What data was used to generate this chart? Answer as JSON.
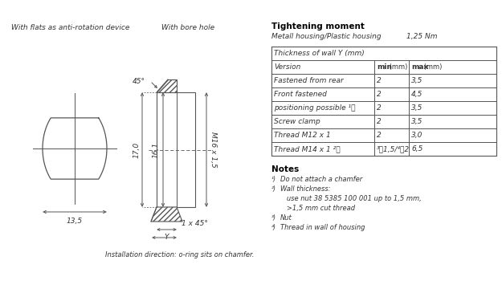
{
  "bg_color": "#ffffff",
  "line_color": "#555555",
  "left_label": "With flats as anti-rotation device",
  "right_label": "With bore hole",
  "dim_170": "17,0",
  "dim_161": "16,1",
  "dim_thread": "M16 x 1,5",
  "dim_135": "13,5",
  "dim_y": "Y",
  "dim_1x45": "1 x 45°",
  "dim_45deg": "45°",
  "install_note": "Installation direction: o-ring sits on chamfer.",
  "tightening_title": "Tightening moment",
  "tightening_sub": "Metall housing/Plastic housing",
  "tightening_val": "1,25 Nm",
  "table_header": "Thickness of wall Y (mm)",
  "table_col1": "Version",
  "table_col2": "min",
  "table_col2_unit": " (mm)",
  "table_col3": "max",
  "table_col3_unit": " (mm)",
  "table_rows": [
    [
      "Fastened from rear",
      "2",
      "3,5"
    ],
    [
      "Front fastened",
      "2",
      "4,5"
    ],
    [
      "positioning possible ¹⧳",
      "2",
      "3,5"
    ],
    [
      "Screw clamp",
      "2",
      "3,5"
    ],
    [
      "Thread M12 x 1",
      "2",
      "3,0"
    ],
    [
      "Thread M14 x 1 ²⧳",
      "³⧳1,5/⁴⧳2",
      "6,5"
    ]
  ],
  "notes_title": "Notes",
  "notes": [
    [
      "¹⧳",
      "Do not attach a chamfer"
    ],
    [
      "²⧳",
      "Wall thickness:"
    ],
    [
      "",
      "   use nut 38 5385 100 001 up to 1,5 mm,"
    ],
    [
      "",
      "   >1,5 mm cut thread"
    ],
    [
      "³⧳",
      "Nut"
    ],
    [
      "⁴⧳",
      "Thread in wall of housing"
    ]
  ]
}
